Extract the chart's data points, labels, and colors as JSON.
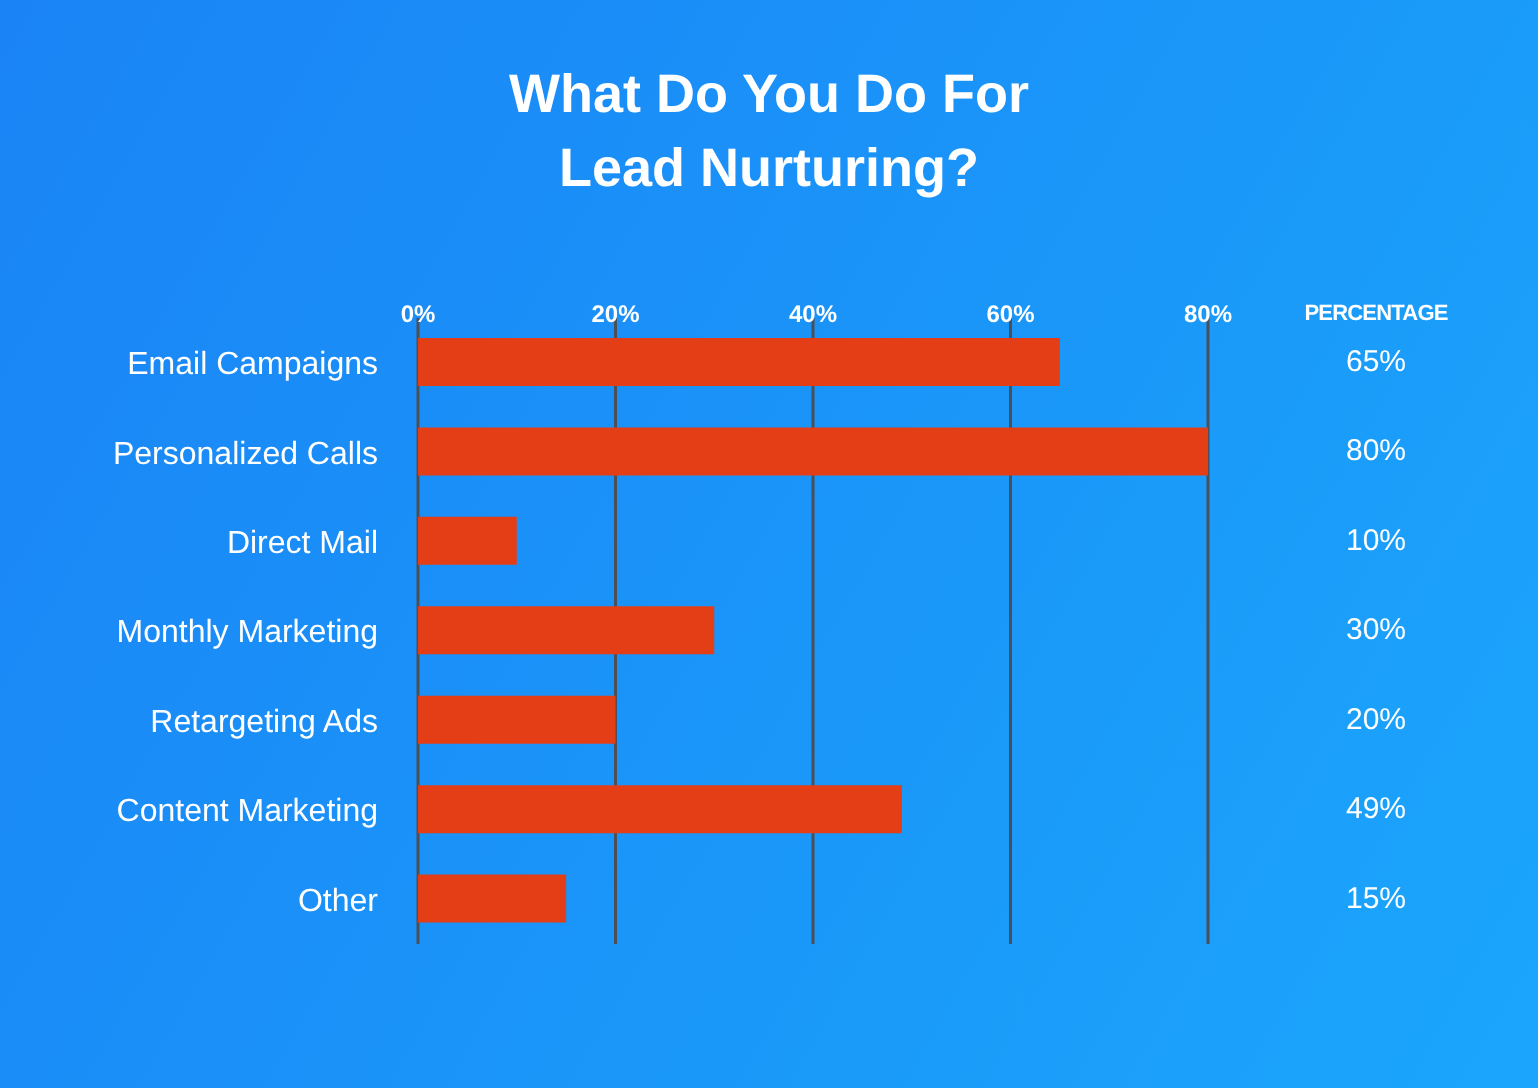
{
  "chart_data": {
    "type": "bar",
    "orientation": "horizontal",
    "title": "What Do You Do For Lead Nurturing?",
    "categories": [
      "Email Campaigns",
      "Personalized Calls",
      "Direct Mail",
      "Monthly Marketing",
      "Retargeting Ads",
      "Content Marketing",
      "Other"
    ],
    "values": [
      65,
      80,
      10,
      30,
      20,
      49,
      15
    ],
    "value_labels": [
      "65%",
      "80%",
      "10%",
      "30%",
      "20%",
      "49%",
      "15%"
    ],
    "color": "#e43e17",
    "xlim": [
      0,
      80
    ],
    "xticks": [
      {
        "value": 0,
        "label": "0%"
      },
      {
        "value": 20,
        "label": "20%"
      },
      {
        "value": 40,
        "label": "40%"
      },
      {
        "value": 60,
        "label": "60%"
      },
      {
        "value": 80,
        "label": "80%"
      }
    ],
    "grid": "x",
    "annotations": [
      "PERCENTAGE"
    ]
  }
}
